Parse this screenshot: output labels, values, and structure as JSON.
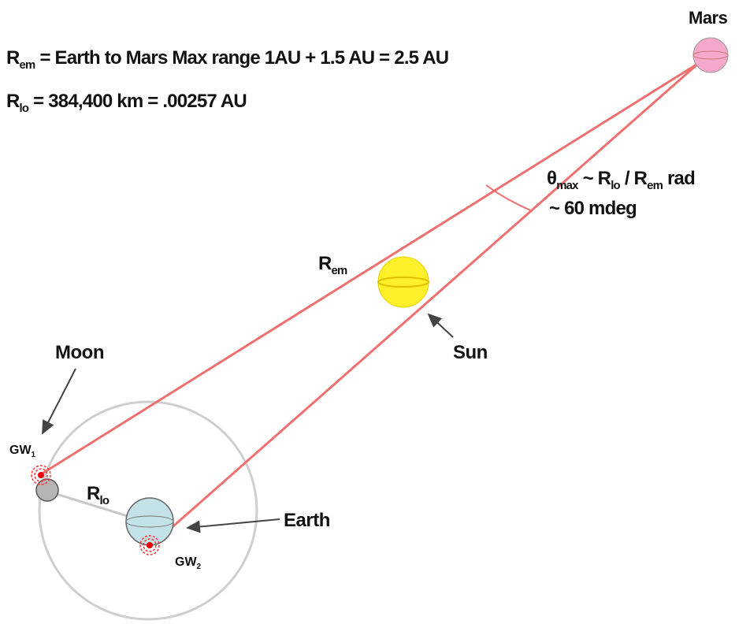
{
  "equations": [
    {
      "symbol": "R",
      "subscript": "em",
      "text": "= Earth to Mars Max range 1AU + 1.5 AU = 2.5 AU"
    },
    {
      "symbol": "R",
      "subscript": "lo",
      "text": "= 384,400 km = .00257 AU"
    }
  ],
  "bodies": {
    "mars": "Mars",
    "sun": "Sun",
    "moon": "Moon",
    "earth": "Earth"
  },
  "stations": [
    {
      "symbol": "GW",
      "subscript": "1"
    },
    {
      "symbol": "GW",
      "subscript": "2"
    }
  ],
  "distances": {
    "earth_mars": {
      "symbol": "R",
      "subscript": "em"
    },
    "earth_moon": {
      "symbol": "R",
      "subscript": "lo"
    }
  },
  "angle": {
    "symbol": "θ",
    "subscript": "max",
    "part1": "~ R",
    "sub1": "lo",
    "part2": "/ R",
    "sub2": "em",
    "part3": "rad",
    "value": "~ 60 mdeg"
  }
}
